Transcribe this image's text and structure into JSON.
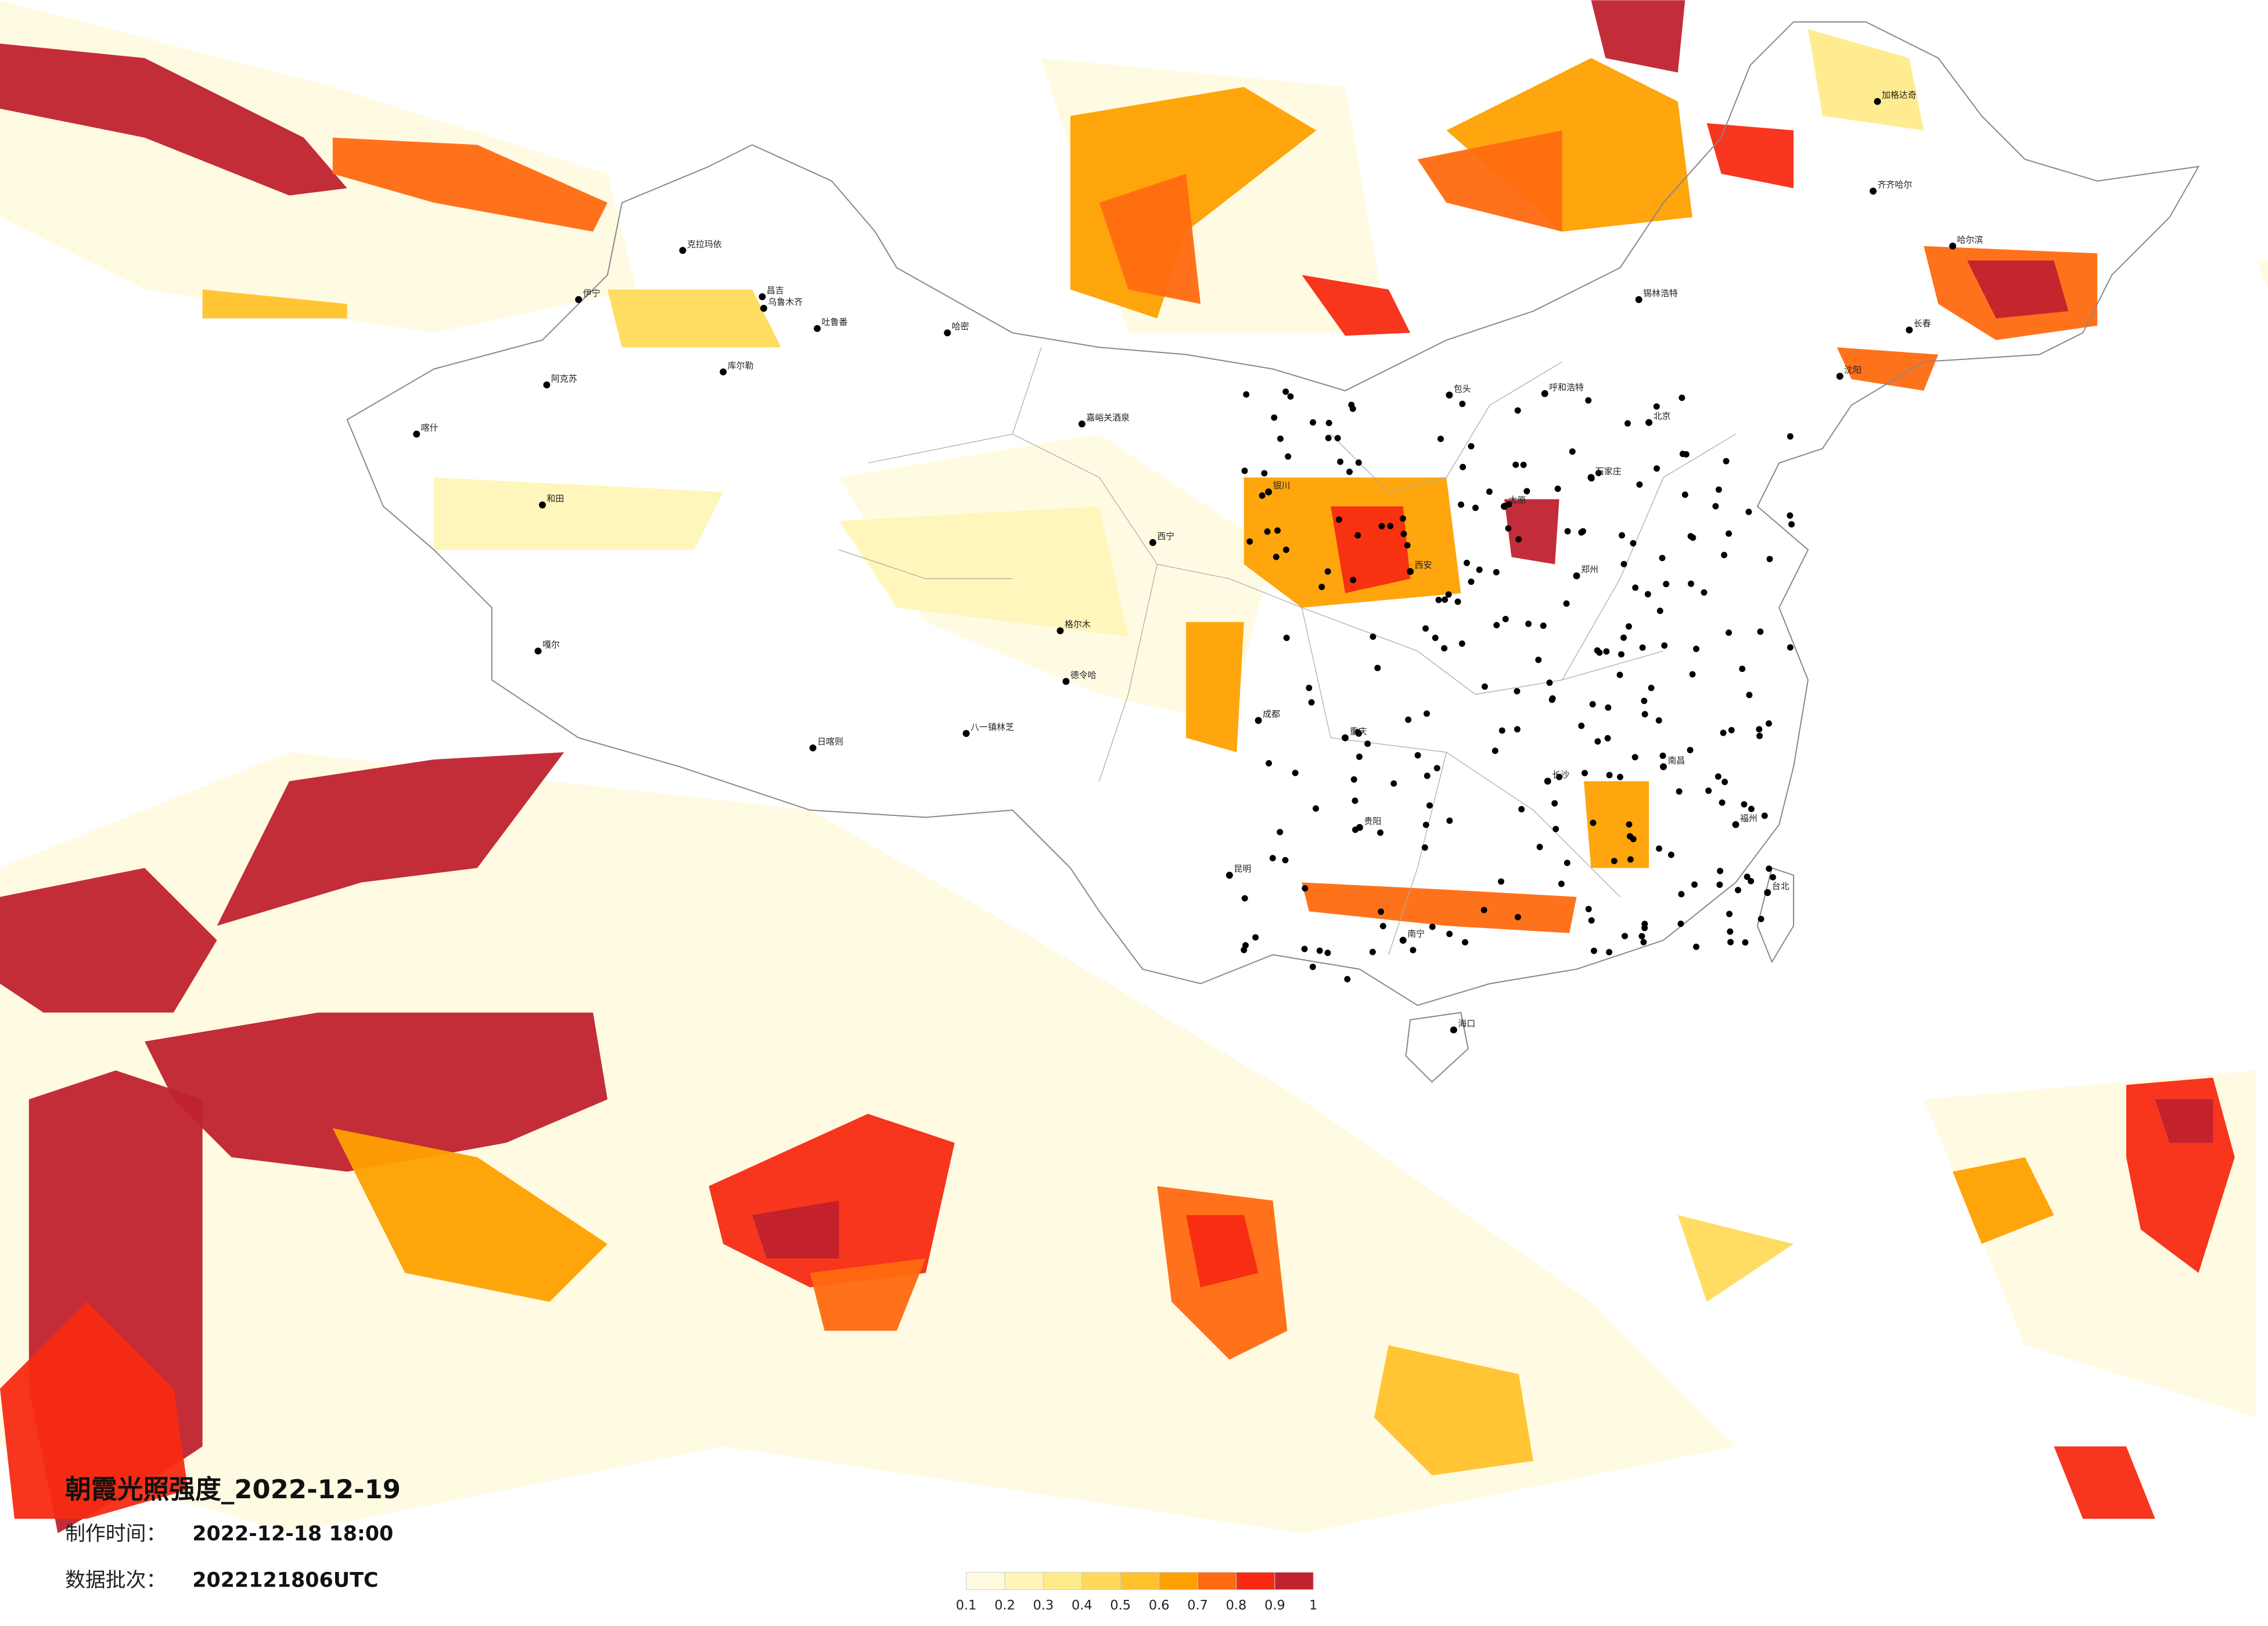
{
  "header": {
    "title": "朝霞光照强度_2022-12-19",
    "made_label": "制作时间：",
    "made_time": "2022-12-18 18:00",
    "batch_label": "数据批次：",
    "batch": "2022121806UTC"
  },
  "legend": {
    "ticks": [
      0.1,
      0.2,
      0.3,
      0.4,
      0.5,
      0.6,
      0.7,
      0.8,
      0.9,
      1
    ],
    "colors": [
      "#fffbe0",
      "#fff5b8",
      "#ffeb8a",
      "#ffda5a",
      "#ffc22a",
      "#ffa000",
      "#ff6a10",
      "#f82a12",
      "#c0222e"
    ]
  },
  "cities": [
    "克拉玛依",
    "伊宁",
    "昌吉",
    "乌鲁木齐",
    "吐鲁番",
    "哈密",
    "库尔勒",
    "阿克苏",
    "喀什",
    "和田",
    "嘎尔",
    "格尔木",
    "德令哈",
    "西宁",
    "嘉峪关酒泉",
    "银川",
    "呼和浩特",
    "包头",
    "锡林浩特",
    "加格达奇",
    "齐齐哈尔",
    "哈尔滨",
    "长春",
    "沈阳",
    "北京",
    "石家庄",
    "太原",
    "郑州",
    "西安",
    "成都",
    "重庆",
    "贵阳",
    "昆明",
    "南宁",
    "长沙",
    "南昌",
    "福州",
    "台北",
    "海口",
    "日喀则",
    "八一镇林芝"
  ]
}
